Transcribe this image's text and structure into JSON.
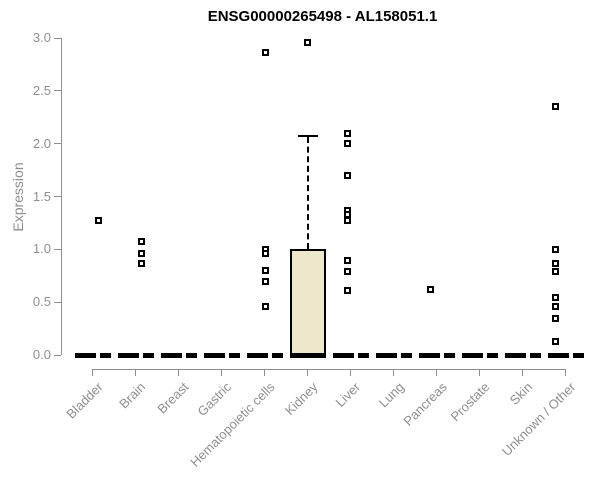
{
  "chart_data": {
    "type": "boxplot",
    "title": "ENSG00000265498 - AL158051.1",
    "ylabel": "Expression",
    "ylim": [
      0,
      3
    ],
    "ytick_labels": [
      "0.0",
      "0.5",
      "1.0",
      "1.5",
      "2.0",
      "2.5",
      "3.0"
    ],
    "grid": false,
    "legend": "none",
    "categories": [
      "Bladder",
      "Brain",
      "Breast",
      "Gastric",
      "Hematopoietic cells",
      "Kidney",
      "Liver",
      "Lung",
      "Pancreas",
      "Prostate",
      "Skin",
      "Unknown / Other"
    ],
    "series": [
      {
        "category": "Bladder",
        "box": {
          "q1": 0,
          "median": 0,
          "q3": 0,
          "whisker_low": 0,
          "whisker_high": 0
        },
        "outliers": [
          1.27
        ],
        "point_dx": 6
      },
      {
        "category": "Brain",
        "box": {
          "q1": 0,
          "median": 0,
          "q3": 0,
          "whisker_low": 0,
          "whisker_high": 0
        },
        "outliers": [
          1.07,
          0.96,
          0.87
        ],
        "point_dx": 6
      },
      {
        "category": "Breast",
        "box": {
          "q1": 0,
          "median": 0,
          "q3": 0,
          "whisker_low": 0,
          "whisker_high": 0
        },
        "outliers": [],
        "point_dx": 0
      },
      {
        "category": "Gastric",
        "box": {
          "q1": 0,
          "median": 0,
          "q3": 0,
          "whisker_low": 0,
          "whisker_high": 0
        },
        "outliers": [],
        "point_dx": 0
      },
      {
        "category": "Hematopoietic cells",
        "box": {
          "q1": 0,
          "median": 0,
          "q3": 0,
          "whisker_low": 0,
          "whisker_high": 0
        },
        "outliers": [
          2.86,
          1.0,
          0.96,
          0.8,
          0.7,
          0.46
        ],
        "point_dx": 1
      },
      {
        "category": "Kidney",
        "box": {
          "q1": 0,
          "median": 0,
          "q3": 1.0,
          "whisker_low": 0,
          "whisker_high": 2.07
        },
        "outliers": [
          2.96
        ],
        "point_dx": 0
      },
      {
        "category": "Liver",
        "box": {
          "q1": 0,
          "median": 0,
          "q3": 0,
          "whisker_low": 0,
          "whisker_high": 0
        },
        "outliers": [
          2.1,
          2.0,
          1.7,
          1.37,
          1.33,
          1.27,
          0.89,
          0.79,
          0.61
        ],
        "point_dx": -3
      },
      {
        "category": "Lung",
        "box": {
          "q1": 0,
          "median": 0,
          "q3": 0,
          "whisker_low": 0,
          "whisker_high": 0
        },
        "outliers": [],
        "point_dx": 0
      },
      {
        "category": "Pancreas",
        "box": {
          "q1": 0,
          "median": 0,
          "q3": 0,
          "whisker_low": 0,
          "whisker_high": 0
        },
        "outliers": [
          0.62
        ],
        "point_dx": -6
      },
      {
        "category": "Prostate",
        "box": {
          "q1": 0,
          "median": 0,
          "q3": 0,
          "whisker_low": 0,
          "whisker_high": 0
        },
        "outliers": [],
        "point_dx": 0
      },
      {
        "category": "Skin",
        "box": {
          "q1": 0,
          "median": 0,
          "q3": 0,
          "whisker_low": 0,
          "whisker_high": 0
        },
        "outliers": [],
        "point_dx": 0
      },
      {
        "category": "Unknown / Other",
        "box": {
          "q1": 0,
          "median": 0,
          "q3": 0,
          "whisker_low": 0,
          "whisker_high": 0
        },
        "outliers": [
          2.35,
          1.0,
          0.87,
          0.79,
          0.54,
          0.46,
          0.35,
          0.13
        ],
        "point_dx": -10
      }
    ],
    "colors": {
      "box_fill": "#EDE7CB",
      "box_border": "#000000",
      "whisker": "#000000",
      "zero_bar": "#000000",
      "marker_fill": "#FFFFFF",
      "marker_border": "#000000",
      "axis": "#8F8F8F",
      "tick_text": "#8F8F8F",
      "title_text": "#000000",
      "background": "#FFFFFF"
    }
  }
}
